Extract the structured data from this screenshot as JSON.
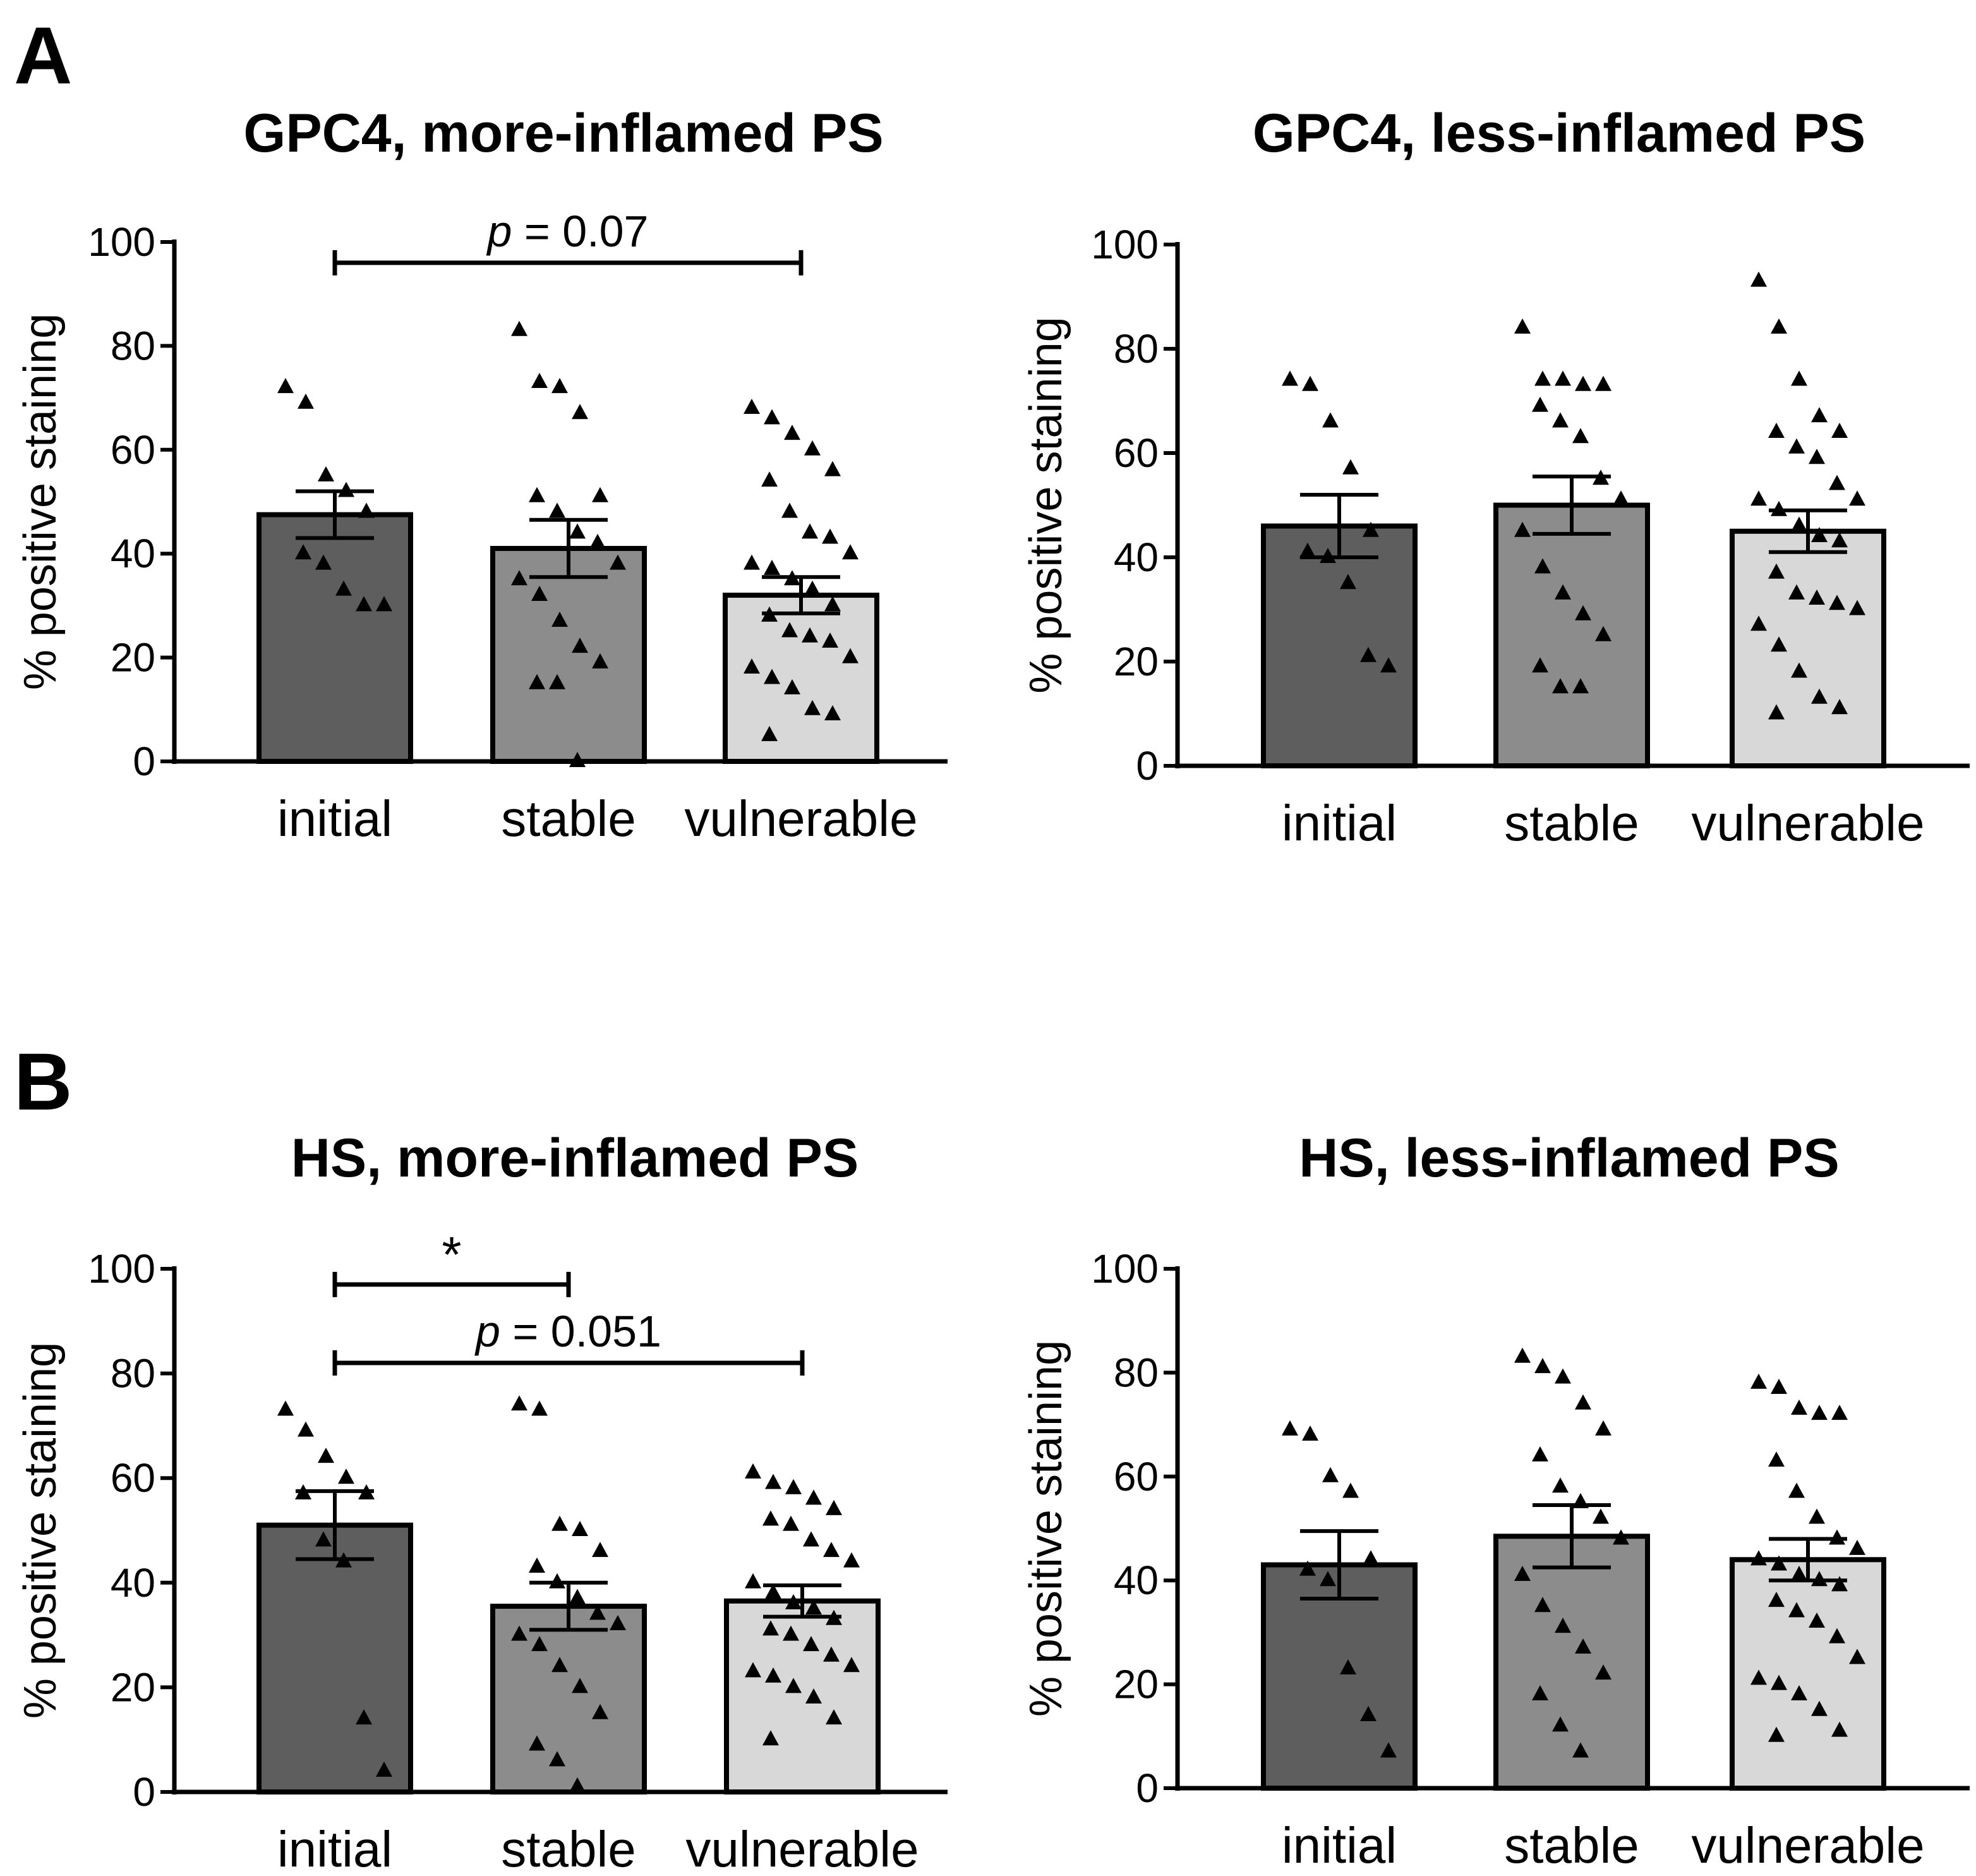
{
  "panels": [
    {
      "letter": "A"
    },
    {
      "letter": "B"
    }
  ],
  "chart_data": [
    {
      "type": "bar",
      "panel": "A",
      "title": "GPC4, more-inflamed PS",
      "ylabel": "% positive staining",
      "xlabel": "",
      "ylim": [
        0,
        100
      ],
      "yticks": [
        0,
        20,
        40,
        60,
        80,
        100
      ],
      "categories": [
        "initial",
        "stable",
        "vulnerable"
      ],
      "values": [
        47.5,
        41,
        32
      ],
      "sem": [
        4.5,
        5.5,
        3.5
      ],
      "bar_colors": [
        "#5e5e5e",
        "#8c8c8c",
        "#d8d8d8"
      ],
      "points": [
        [
          72,
          69,
          55,
          52,
          48,
          40,
          38,
          33,
          30,
          30
        ],
        [
          83,
          73,
          72,
          67,
          51,
          51,
          48,
          44,
          42,
          38,
          35,
          32,
          27,
          22,
          19,
          15,
          15,
          0
        ],
        [
          68,
          66,
          63,
          60,
          56,
          54,
          48,
          44,
          43,
          40,
          38,
          37,
          35,
          33,
          30,
          28,
          25,
          24,
          23,
          20,
          18,
          16,
          14,
          10,
          9,
          5
        ]
      ],
      "significance": [
        {
          "from": 0,
          "to": 2,
          "label": "p = 0.07",
          "level": 96
        }
      ]
    },
    {
      "type": "bar",
      "panel": "A",
      "title": "GPC4, less-inflamed PS",
      "ylabel": "% positive staining",
      "xlabel": "",
      "ylim": [
        0,
        100
      ],
      "yticks": [
        0,
        20,
        40,
        60,
        80,
        100
      ],
      "categories": [
        "initial",
        "stable",
        "vulnerable"
      ],
      "values": [
        46,
        50,
        45
      ],
      "sem": [
        6,
        5.5,
        4
      ],
      "bar_colors": [
        "#5e5e5e",
        "#8c8c8c",
        "#d8d8d8"
      ],
      "points": [
        [
          74,
          73,
          66,
          57,
          45,
          41,
          40,
          35,
          21,
          19
        ],
        [
          84,
          74,
          74,
          73,
          73,
          69,
          66,
          63,
          55,
          51,
          45,
          38,
          33,
          29,
          25,
          19,
          15,
          15
        ],
        [
          93,
          84,
          74,
          67,
          64,
          64,
          61,
          59,
          54,
          51,
          51,
          49,
          46,
          44,
          43,
          37,
          33,
          32,
          31,
          30,
          27,
          23,
          18,
          13,
          11,
          10
        ]
      ],
      "significance": []
    },
    {
      "type": "bar",
      "panel": "B",
      "title": "HS, more-inflamed PS",
      "ylabel": "% positive staining",
      "xlabel": "",
      "ylim": [
        0,
        100
      ],
      "yticks": [
        0,
        20,
        40,
        60,
        80,
        100
      ],
      "categories": [
        "initial",
        "stable",
        "vulnerable"
      ],
      "values": [
        51,
        35.5,
        36.5
      ],
      "sem": [
        6.5,
        4.5,
        3
      ],
      "bar_colors": [
        "#5e5e5e",
        "#8c8c8c",
        "#d8d8d8"
      ],
      "points": [
        [
          73,
          69,
          64,
          60,
          57,
          57,
          48,
          44,
          14,
          4
        ],
        [
          74,
          73,
          51,
          50,
          46,
          43,
          40,
          37,
          34,
          32,
          30,
          28,
          24,
          20,
          15,
          9,
          6,
          1
        ],
        [
          61,
          59,
          58,
          56,
          54,
          52,
          51,
          48,
          46,
          44,
          40,
          38,
          36,
          35,
          33,
          31,
          30,
          28,
          26,
          24,
          23,
          22,
          20,
          18,
          14,
          10
        ]
      ],
      "significance": [
        {
          "from": 0,
          "to": 1,
          "label": "*",
          "level": 97
        },
        {
          "from": 0,
          "to": 2,
          "label": "p = 0.051",
          "level": 82
        }
      ]
    },
    {
      "type": "bar",
      "panel": "B",
      "title": "HS, less-inflamed PS",
      "ylabel": "% positive staining",
      "xlabel": "",
      "ylim": [
        0,
        100
      ],
      "yticks": [
        0,
        20,
        40,
        60,
        80,
        100
      ],
      "categories": [
        "initial",
        "stable",
        "vulnerable"
      ],
      "values": [
        43,
        48.5,
        44
      ],
      "sem": [
        6.5,
        6,
        4
      ],
      "bar_colors": [
        "#5e5e5e",
        "#8c8c8c",
        "#d8d8d8"
      ],
      "points": [
        [
          69,
          68,
          60,
          57,
          44,
          42,
          40,
          23,
          14,
          7
        ],
        [
          83,
          81,
          79,
          74,
          69,
          64,
          58,
          55,
          52,
          48,
          41,
          35,
          31,
          27,
          22,
          18,
          12,
          7
        ],
        [
          78,
          77,
          73,
          72,
          72,
          63,
          57,
          52,
          48,
          46,
          44,
          43,
          41,
          40,
          39,
          36,
          34,
          32,
          29,
          25,
          21,
          20,
          18,
          15,
          11,
          10
        ]
      ],
      "significance": []
    }
  ]
}
